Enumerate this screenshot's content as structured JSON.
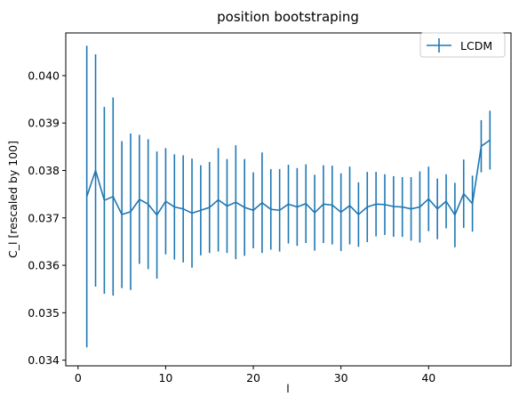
{
  "chart_data": {
    "type": "line",
    "title": "position bootstraping",
    "xlabel": "l",
    "ylabel": "C_l [rescaled by 100]",
    "xlim": [
      -1.4,
      49.4
    ],
    "ylim": [
      0.03388,
      0.0409
    ],
    "xticks": [
      0,
      10,
      20,
      30,
      40
    ],
    "yticks": [
      0.034,
      0.035,
      0.036,
      0.037,
      0.038,
      0.039,
      0.04
    ],
    "ytick_labels": [
      "0.034",
      "0.035",
      "0.036",
      "0.037",
      "0.038",
      "0.039",
      "0.040"
    ],
    "grid": false,
    "legend_position": "upper right",
    "color": "#1f77b4",
    "series": [
      {
        "name": "LCDM",
        "x": [
          1,
          2,
          3,
          4,
          5,
          6,
          7,
          8,
          9,
          10,
          11,
          12,
          13,
          14,
          15,
          16,
          17,
          18,
          19,
          20,
          21,
          22,
          23,
          24,
          25,
          26,
          27,
          28,
          29,
          30,
          31,
          32,
          33,
          34,
          35,
          36,
          37,
          38,
          39,
          40,
          41,
          42,
          43,
          44,
          45,
          46,
          47
        ],
        "y": [
          0.03745,
          0.038,
          0.03737,
          0.03745,
          0.03707,
          0.03713,
          0.03739,
          0.03729,
          0.03706,
          0.03735,
          0.03723,
          0.03719,
          0.0371,
          0.03716,
          0.03722,
          0.03738,
          0.03725,
          0.03733,
          0.03722,
          0.03716,
          0.03732,
          0.03718,
          0.03716,
          0.03729,
          0.03723,
          0.0373,
          0.03711,
          0.03729,
          0.03727,
          0.03712,
          0.03726,
          0.03707,
          0.03723,
          0.03729,
          0.03728,
          0.03724,
          0.03723,
          0.03719,
          0.03723,
          0.0374,
          0.03719,
          0.03735,
          0.03706,
          0.03751,
          0.0373,
          0.03851,
          0.03864
        ],
        "yerr": [
          0.00318,
          0.00245,
          0.00197,
          0.00209,
          0.00155,
          0.00165,
          0.00136,
          0.00137,
          0.00134,
          0.00112,
          0.00111,
          0.00113,
          0.00115,
          0.00095,
          0.00096,
          0.00109,
          0.00099,
          0.0012,
          0.00102,
          0.0008,
          0.00106,
          0.00085,
          0.00087,
          0.00083,
          0.00082,
          0.00083,
          0.0008,
          0.00082,
          0.00083,
          0.00082,
          0.00082,
          0.00068,
          0.00074,
          0.00068,
          0.00064,
          0.00064,
          0.00063,
          0.00067,
          0.00075,
          0.00068,
          0.00064,
          0.00057,
          0.00068,
          0.00072,
          0.00059,
          0.00055,
          0.00062
        ]
      }
    ]
  }
}
